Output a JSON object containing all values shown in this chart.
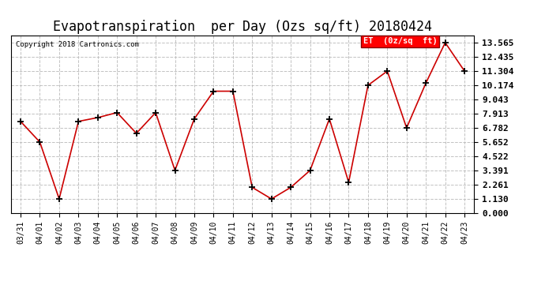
{
  "title": "Evapotranspiration  per Day (Ozs sq/ft) 20180424",
  "copyright": "Copyright 2018 Cartronics.com",
  "legend_label": "ET  (0z/sq  ft)",
  "dates": [
    "03/31",
    "04/01",
    "04/02",
    "04/03",
    "04/04",
    "04/05",
    "04/06",
    "04/07",
    "04/08",
    "04/09",
    "04/10",
    "04/11",
    "04/12",
    "04/13",
    "04/14",
    "04/15",
    "04/16",
    "04/17",
    "04/18",
    "04/19",
    "04/20",
    "04/21",
    "04/22",
    "04/23"
  ],
  "values": [
    7.3,
    5.65,
    1.13,
    7.3,
    7.6,
    8.0,
    6.35,
    8.0,
    3.4,
    7.5,
    9.7,
    9.7,
    2.05,
    1.13,
    2.05,
    3.4,
    7.5,
    2.45,
    10.17,
    11.3,
    6.78,
    10.35,
    13.565,
    11.3
  ],
  "yticks": [
    0.0,
    1.13,
    2.261,
    3.391,
    4.522,
    5.652,
    6.782,
    7.913,
    9.043,
    10.174,
    11.304,
    12.435,
    13.565
  ],
  "line_color": "#cc0000",
  "marker_color": "black",
  "bg_color": "white",
  "grid_color": "#bbbbbb",
  "title_fontsize": 12,
  "ylim_max": 14.13,
  "ylim_min": 0.0
}
